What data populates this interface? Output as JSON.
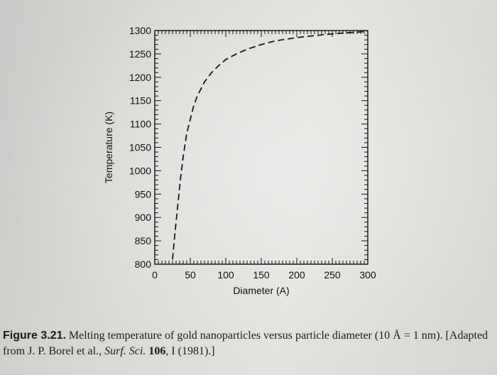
{
  "chart_data": {
    "type": "line",
    "xlabel": "Diameter (A)",
    "ylabel": "Temperature (K)",
    "xlim": [
      0,
      300
    ],
    "ylim": [
      800,
      1300
    ],
    "x_ticks": [
      0,
      50,
      100,
      150,
      200,
      250,
      300
    ],
    "y_ticks": [
      800,
      850,
      900,
      950,
      1000,
      1050,
      1100,
      1150,
      1200,
      1250,
      1300
    ],
    "grid": false,
    "series": [
      {
        "style": "dashed",
        "color": "#1a1a1a",
        "x": [
          25,
          28,
          32,
          36,
          40,
          45,
          50,
          55,
          60,
          70,
          80,
          90,
          100,
          115,
          130,
          150,
          170,
          200,
          230,
          260,
          300
        ],
        "y": [
          810,
          860,
          920,
          980,
          1030,
          1080,
          1110,
          1140,
          1160,
          1190,
          1210,
          1225,
          1238,
          1250,
          1260,
          1270,
          1278,
          1285,
          1290,
          1294,
          1298
        ]
      }
    ]
  },
  "caption": {
    "label": "Figure 3.21.",
    "text_before": " Melting temperature of gold nanoparticles versus particle diameter (10 Å = 1 nm). [Adapted from J. P. Borel et al., ",
    "journal": "Surf. Sci.",
    "volume": "106",
    "text_after": ", I (1981).]"
  }
}
